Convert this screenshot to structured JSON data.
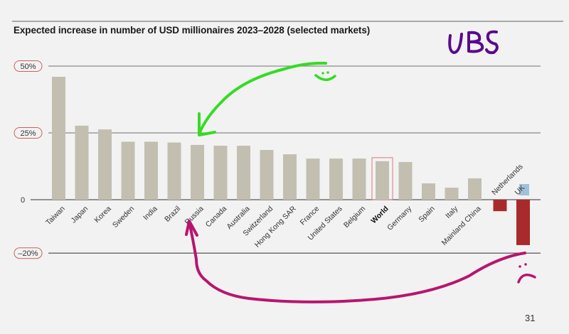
{
  "page": {
    "title": "Expected increase in number of USD millionaires 2023–2028  (selected markets)",
    "page_number": "31"
  },
  "annotations": {
    "handwritten_text": "UBS",
    "happy_face": "smiley-face",
    "sad_face": "frowny-face",
    "green_arrow_target": "Russia",
    "magenta_arrow_from": "UK",
    "magenta_arrow_to": "Russia",
    "colors": {
      "green": "#33dd22",
      "magenta": "#b8156e",
      "purple": "#5a0a8c"
    }
  },
  "chart_data": {
    "type": "bar",
    "title": "Expected increase in number of USD millionaires 2023–2028  (selected markets)",
    "xlabel": "",
    "ylabel": "",
    "ylim": [
      -20,
      50
    ],
    "yticks": [
      {
        "value": 50,
        "label": "50%",
        "pill": true
      },
      {
        "value": 25,
        "label": "25%",
        "pill": true
      },
      {
        "value": 0,
        "label": "0",
        "pill": false
      },
      {
        "value": -20,
        "label": "–20%",
        "pill": true
      }
    ],
    "grid": true,
    "categories": [
      "Taiwan",
      "Japan",
      "Korea",
      "Sweden",
      "India",
      "Brazil",
      "Russia",
      "Canada",
      "Australia",
      "Switzerland",
      "Hong Kong SAR",
      "France",
      "United States",
      "Belgium",
      "World",
      "Germany",
      "Spain",
      "Italy",
      "Mainland China",
      "Netherlands",
      "UK"
    ],
    "values": [
      46,
      27.7,
      26.3,
      21.7,
      21.7,
      21.4,
      20.5,
      20.2,
      20.2,
      18.6,
      17,
      15.4,
      15.4,
      15.4,
      14.4,
      14.1,
      6.1,
      4.5,
      8,
      -4.3,
      -17
    ],
    "highlighted_category": "World",
    "label_highlight": "UK",
    "colors": {
      "positive": "#c2bfb1",
      "negative": "#a82a2a",
      "highlight_box": "#d9797a",
      "pill_border": "#c9605f",
      "uk_label_bg": "#9fc1dc"
    }
  }
}
